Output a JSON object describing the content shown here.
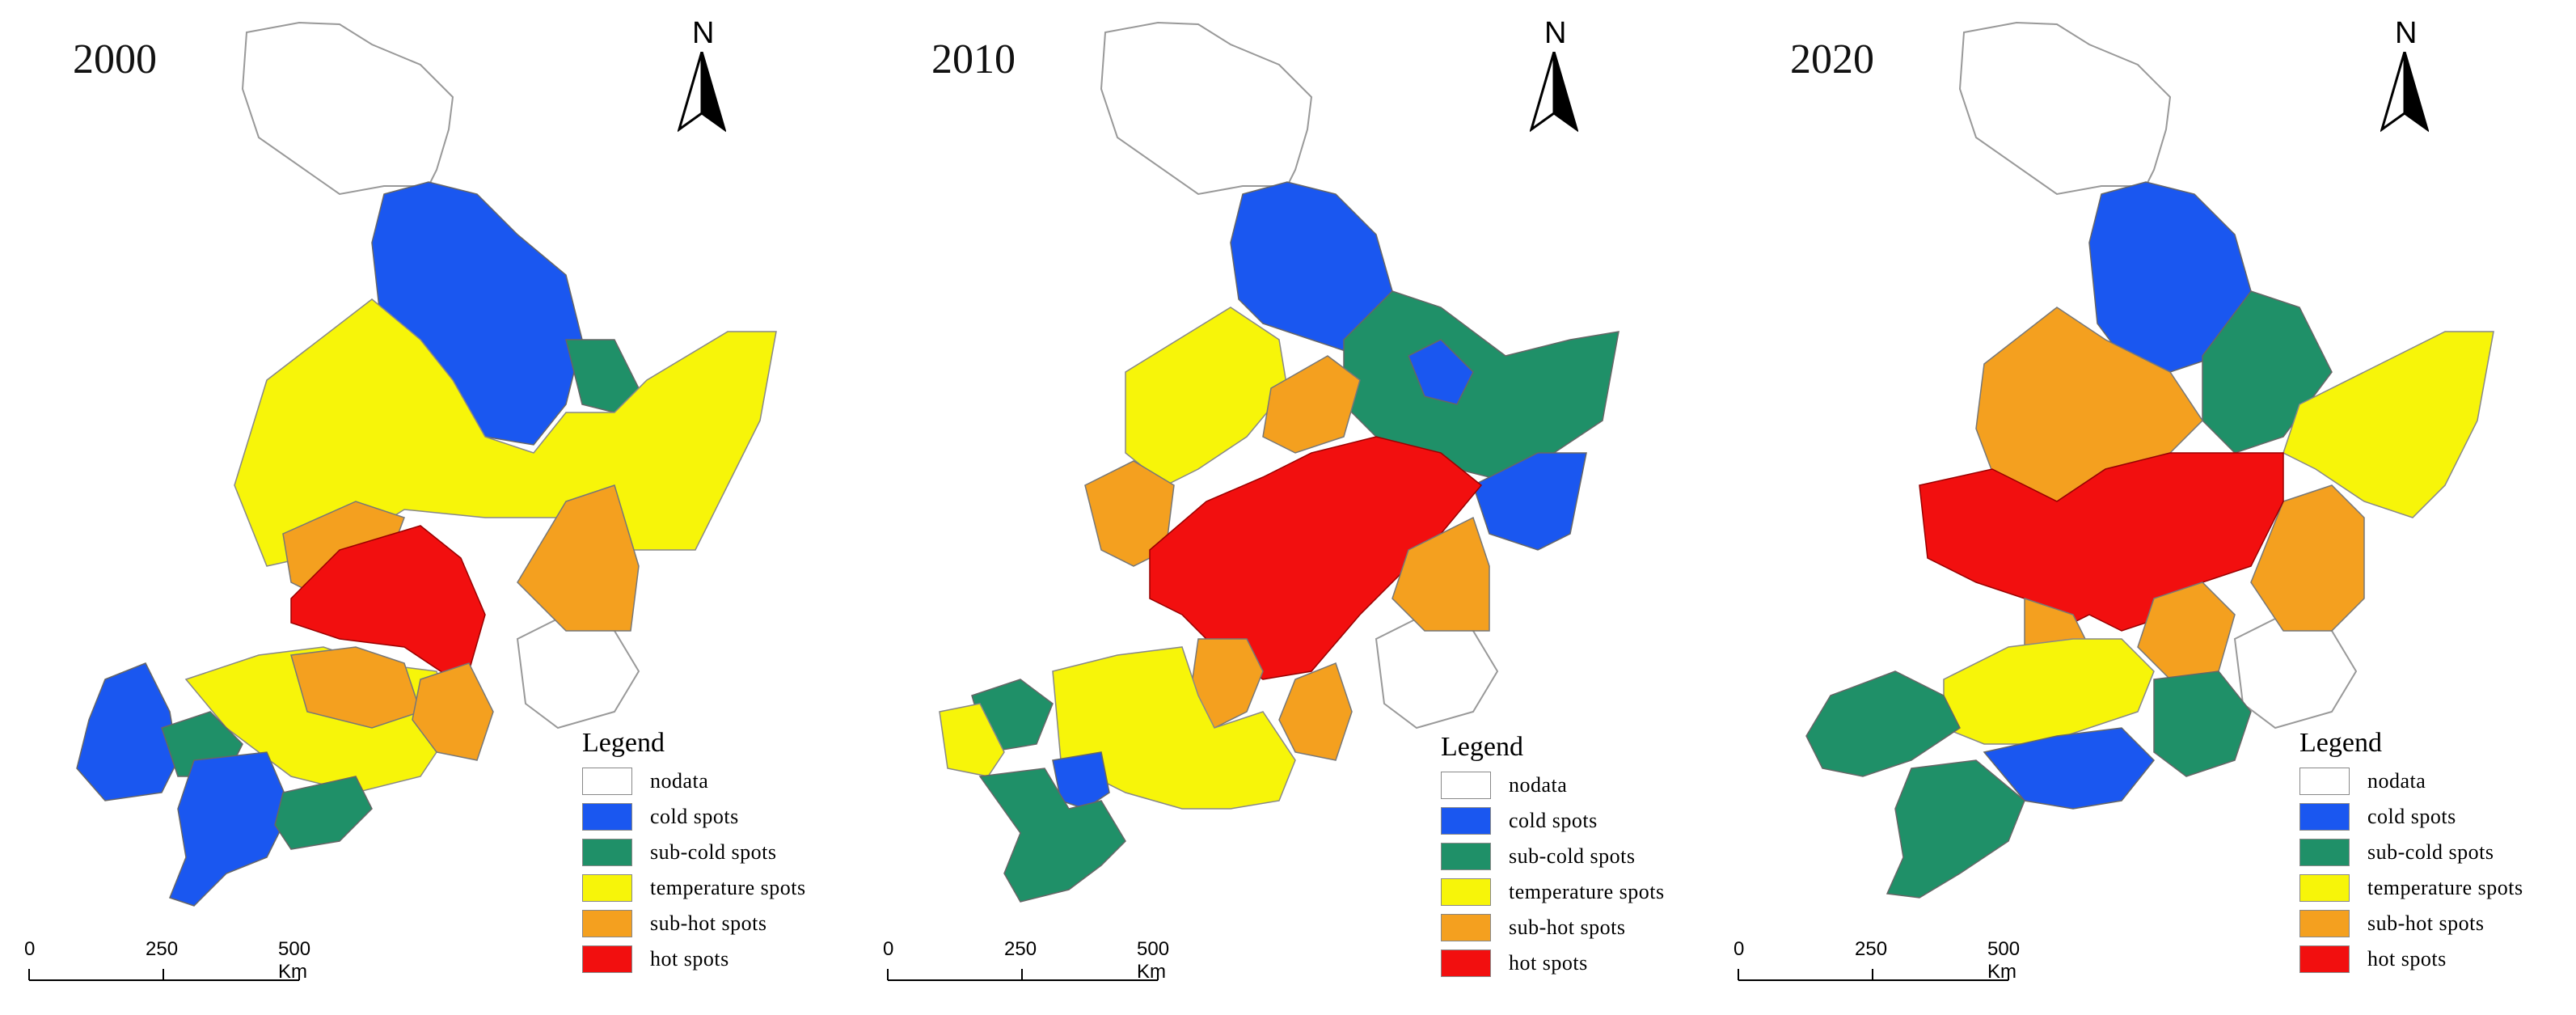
{
  "panels": [
    {
      "year": "2000"
    },
    {
      "year": "2010"
    },
    {
      "year": "2020"
    }
  ],
  "north_label": "N",
  "legend": {
    "title": "Legend",
    "items": [
      {
        "label": "nodata",
        "color": "#ffffff"
      },
      {
        "label": "cold spots",
        "color": "#1a57f0"
      },
      {
        "label": "sub-cold spots",
        "color": "#1f9068"
      },
      {
        "label": "temperature spots",
        "color": "#f7f509"
      },
      {
        "label": "sub-hot spots",
        "color": "#f4a01f"
      },
      {
        "label": "hot spots",
        "color": "#f20f0f"
      }
    ]
  },
  "scale": {
    "ticks": [
      "0",
      "250",
      "500 Km"
    ]
  }
}
